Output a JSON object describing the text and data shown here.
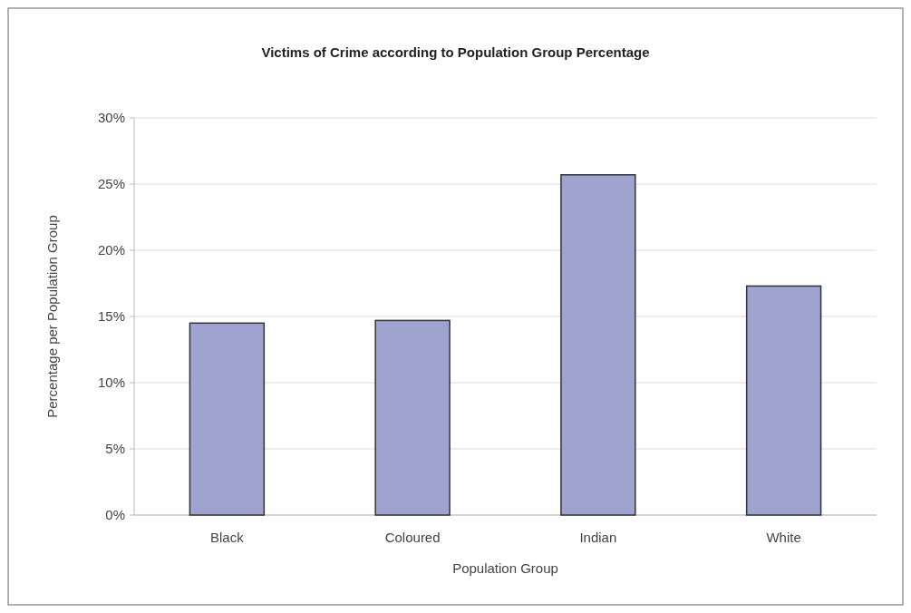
{
  "chart_data": {
    "type": "bar",
    "title": "Victims of Crime according to Population Group Percentage",
    "xlabel": "Population Group",
    "ylabel": "Percentage per Population Group",
    "categories": [
      "Black",
      "Coloured",
      "Indian",
      "White"
    ],
    "values": [
      14.5,
      14.7,
      25.7,
      17.3
    ],
    "color": "#9fa3d0",
    "ylim": [
      0,
      30
    ],
    "yticks": [
      {
        "value": 0,
        "label": "0%"
      },
      {
        "value": 5,
        "label": "5%"
      },
      {
        "value": 10,
        "label": "10%"
      },
      {
        "value": 15,
        "label": "15%"
      },
      {
        "value": 20,
        "label": "20%"
      },
      {
        "value": 25,
        "label": "25%"
      },
      {
        "value": 30,
        "label": "30%"
      }
    ],
    "grid": "y"
  }
}
